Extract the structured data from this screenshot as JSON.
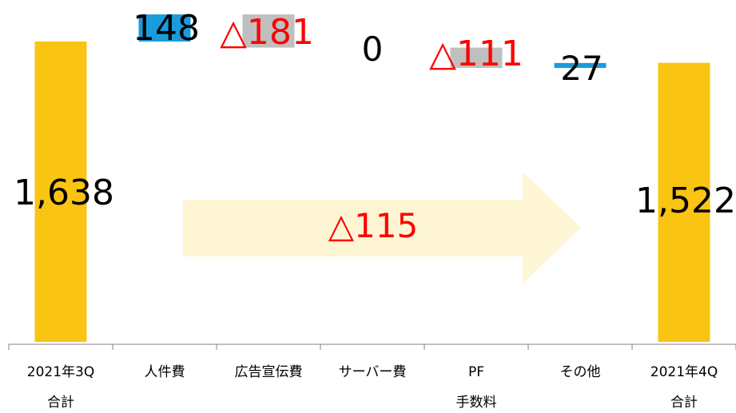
{
  "chart_data": {
    "type": "bar",
    "subtype": "waterfall",
    "categories": [
      {
        "line1": "2021年3Q",
        "line2": "合計"
      },
      {
        "line1": "人件費",
        "line2": ""
      },
      {
        "line1": "広告宣伝費",
        "line2": ""
      },
      {
        "line1": "サーバー費",
        "line2": ""
      },
      {
        "line1": "PF",
        "line2": "手数料"
      },
      {
        "line1": "その他",
        "line2": ""
      },
      {
        "line1": "2021年4Q",
        "line2": "合計"
      }
    ],
    "steps": [
      {
        "kind": "total",
        "value": 1638,
        "label": "1,638"
      },
      {
        "kind": "delta",
        "value": 148,
        "label": "148"
      },
      {
        "kind": "delta",
        "value": -181,
        "label": "△181"
      },
      {
        "kind": "delta",
        "value": 0,
        "label": "0"
      },
      {
        "kind": "delta",
        "value": -111,
        "label": "△111"
      },
      {
        "kind": "delta",
        "value": 27,
        "label": "27"
      },
      {
        "kind": "total",
        "value": 1522,
        "label": "1,522"
      }
    ],
    "net_change": {
      "value": -115,
      "label": "△115"
    },
    "colors": {
      "total": "#FAC412",
      "increase": "#1A9BDB",
      "decrease": "#BFBFBF",
      "negative_label": "#FF0000",
      "label": "#000000",
      "arrow": "#FEF5D4",
      "axis": "#808080"
    }
  }
}
